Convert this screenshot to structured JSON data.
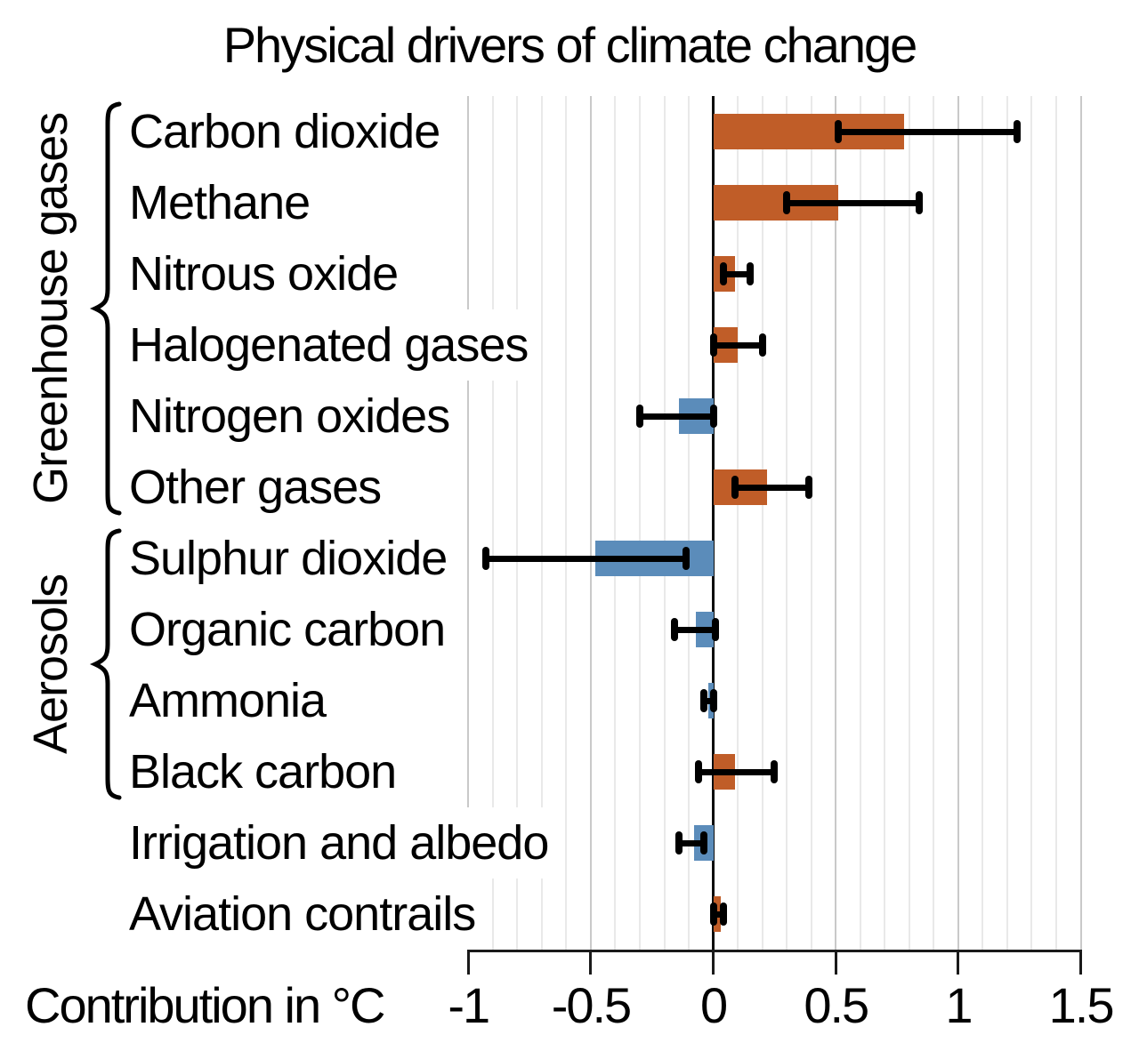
{
  "chart_data": {
    "type": "bar",
    "orientation": "horizontal",
    "title": "Physical drivers of climate change",
    "xlabel": "Contribution in °C",
    "xlim": [
      -1.05,
      1.5
    ],
    "grid": "minor vertical every 0.1, major every 0.5",
    "x_ticks": [
      {
        "value": -1,
        "label": "-1"
      },
      {
        "value": -0.5,
        "label": "-0.5"
      },
      {
        "value": 0,
        "label": "0"
      },
      {
        "value": 0.5,
        "label": "0.5"
      },
      {
        "value": 1,
        "label": "1"
      },
      {
        "value": 1.5,
        "label": "1.5"
      }
    ],
    "groups": [
      {
        "name": "Greenhouse gases",
        "start_row": 0,
        "end_row": 5
      },
      {
        "name": "Aerosols",
        "start_row": 6,
        "end_row": 9
      }
    ],
    "bars": [
      {
        "label": "Carbon dioxide",
        "value": 0.78,
        "ci_low": 0.51,
        "ci_high": 1.24
      },
      {
        "label": "Methane",
        "value": 0.51,
        "ci_low": 0.3,
        "ci_high": 0.84
      },
      {
        "label": "Nitrous oxide",
        "value": 0.09,
        "ci_low": 0.04,
        "ci_high": 0.15
      },
      {
        "label": "Halogenated gases",
        "value": 0.1,
        "ci_low": 0.0,
        "ci_high": 0.2
      },
      {
        "label": "Nitrogen oxides",
        "value": -0.14,
        "ci_low": -0.3,
        "ci_high": 0.0
      },
      {
        "label": "Other gases",
        "value": 0.22,
        "ci_low": 0.09,
        "ci_high": 0.39
      },
      {
        "label": "Sulphur dioxide",
        "value": -0.48,
        "ci_low": -0.93,
        "ci_high": -0.11
      },
      {
        "label": "Organic carbon",
        "value": -0.07,
        "ci_low": -0.16,
        "ci_high": 0.01
      },
      {
        "label": "Ammonia",
        "value": -0.02,
        "ci_low": -0.04,
        "ci_high": 0.0
      },
      {
        "label": "Black carbon",
        "value": 0.09,
        "ci_low": -0.06,
        "ci_high": 0.25
      },
      {
        "label": "Irrigation and albedo",
        "value": -0.08,
        "ci_low": -0.14,
        "ci_high": -0.04
      },
      {
        "label": "Aviation contrails",
        "value": 0.03,
        "ci_low": 0.0,
        "ci_high": 0.04
      }
    ],
    "colors": {
      "positive_bar": "#c05d28",
      "negative_bar": "#5b8cba",
      "error_bar": "#000000",
      "grid_minor": "#e9e9e9",
      "grid_major": "#c9c9c9",
      "axis": "#1a1a1a"
    }
  }
}
